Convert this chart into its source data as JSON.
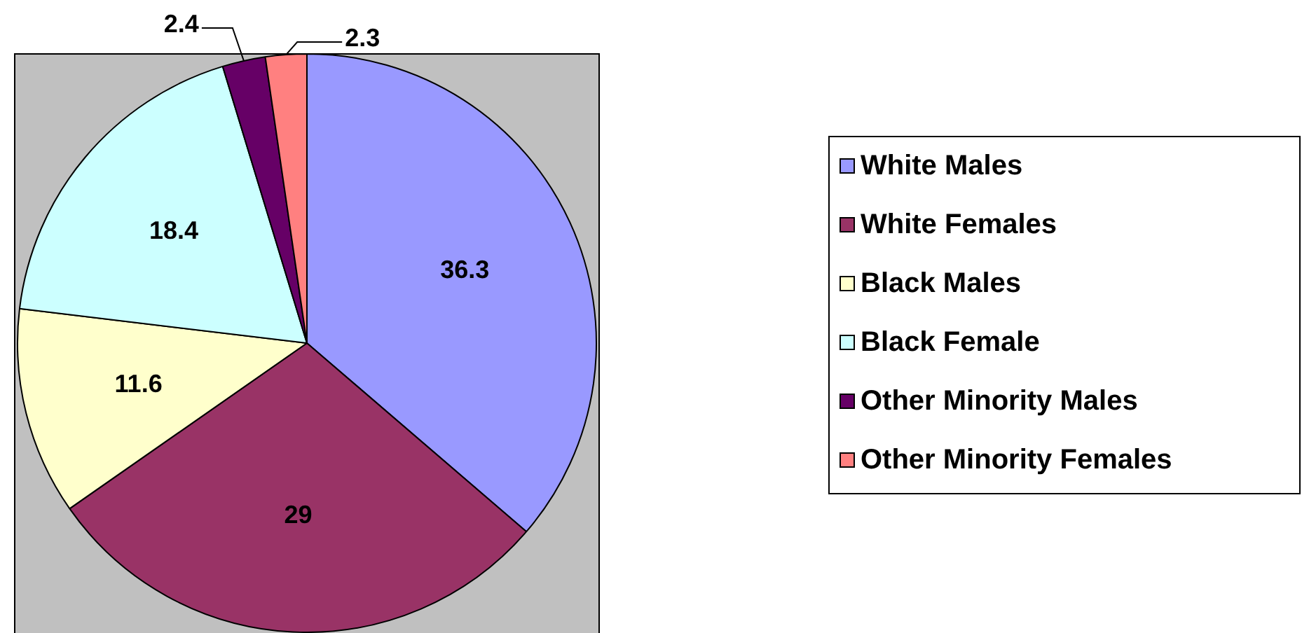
{
  "chart_data": {
    "type": "pie",
    "categories": [
      "White Males",
      "White Females",
      "Black Males",
      "Black Female",
      "Other Minority Males",
      "Other Minority Females"
    ],
    "values": [
      36.3,
      29,
      11.6,
      18.4,
      2.4,
      2.3
    ],
    "colors": [
      "#9999ff",
      "#993366",
      "#ffffcc",
      "#ccffff",
      "#660066",
      "#ff8080"
    ],
    "data_labels": true,
    "legend": "right"
  }
}
